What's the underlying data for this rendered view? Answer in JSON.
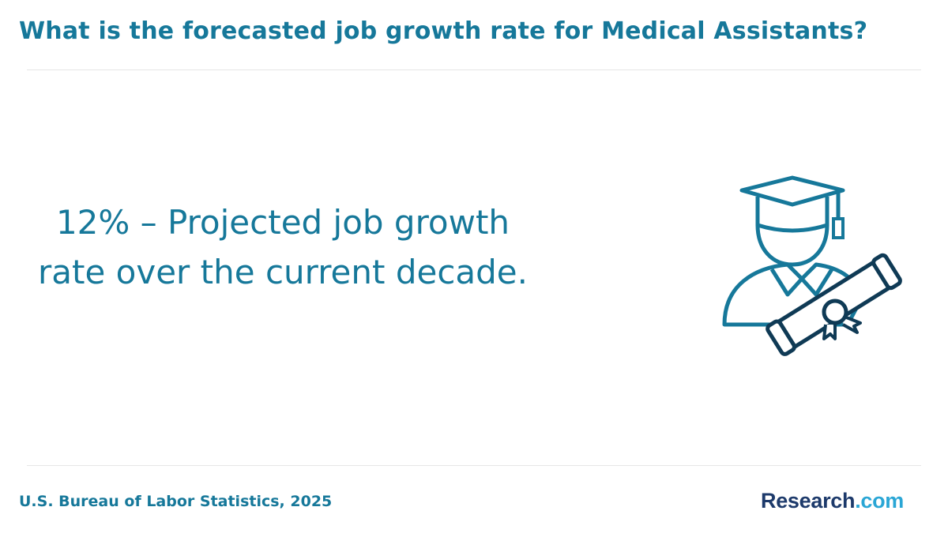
{
  "header": {
    "title": "What is the forecasted job growth rate for Medical Assistants?"
  },
  "main": {
    "stat_text": "12% – Projected job growth rate over the current decade.",
    "illustration_icon": "graduate-with-diploma-icon"
  },
  "footer": {
    "source": "U.S. Bureau of Labor Statistics, 2025",
    "logo_brand": "Research",
    "logo_tld": ".com"
  },
  "colors": {
    "primary_teal": "#16789a",
    "navy": "#1d3a6b",
    "logo_accent": "#2aa6d5",
    "divider": "#e6e6e6"
  }
}
